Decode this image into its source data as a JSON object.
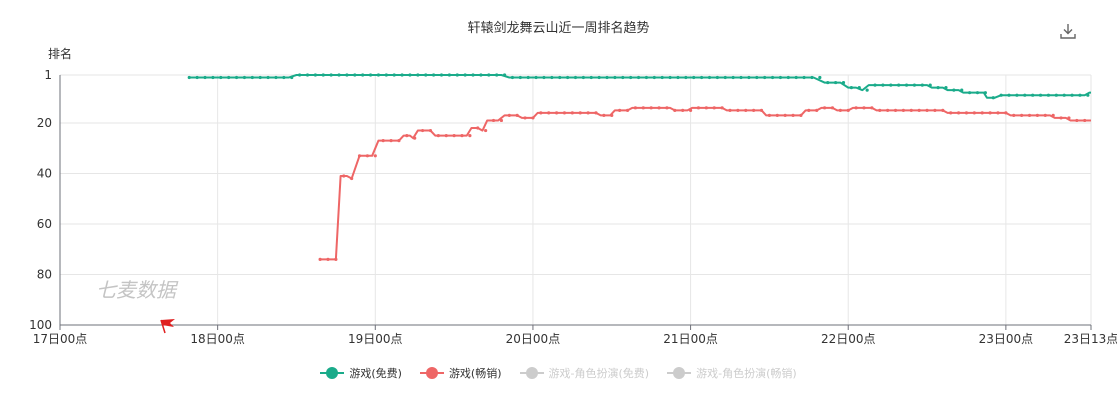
{
  "colors": {
    "free": "#1aab8a",
    "paid": "#ee6666",
    "inactive": "#cccccc",
    "grid": "#e6e6e6",
    "axis": "#6e7079",
    "watermark": "#c4c4c4",
    "flag": "#e02020"
  },
  "icons": {
    "download": "download-icon",
    "flag": "flag-icon"
  },
  "watermark": "七麦数据",
  "chart_data": {
    "type": "line",
    "title": "轩辕剑龙舞云山近一周排名趋势",
    "ylabel": "排名",
    "yticks": [
      1,
      20,
      40,
      60,
      80,
      100
    ],
    "ylim": [
      1,
      100
    ],
    "y_inverted": true,
    "xlim": [
      0,
      6.54
    ],
    "xticks": [
      {
        "value": 0,
        "label": "17日00点"
      },
      {
        "value": 1,
        "label": "18日00点"
      },
      {
        "value": 2,
        "label": "19日00点"
      },
      {
        "value": 3,
        "label": "20日00点"
      },
      {
        "value": 4,
        "label": "21日00点"
      },
      {
        "value": 5,
        "label": "22日00点"
      },
      {
        "value": 6,
        "label": "23日00点"
      },
      {
        "value": 6.54,
        "label": "23日13点"
      }
    ],
    "grid": true,
    "legend_position": "bottom",
    "series": [
      {
        "name": "游戏(免费)",
        "active": true,
        "points": [
          [
            0.82,
            2
          ],
          [
            1.45,
            2
          ],
          [
            1.5,
            1
          ],
          [
            2.0,
            1
          ],
          [
            2.5,
            1
          ],
          [
            2.8,
            1
          ],
          [
            2.85,
            2
          ],
          [
            3.5,
            2
          ],
          [
            4.0,
            2
          ],
          [
            4.78,
            2
          ],
          [
            4.85,
            4
          ],
          [
            4.95,
            4
          ],
          [
            5.0,
            6
          ],
          [
            5.05,
            6
          ],
          [
            5.09,
            7
          ],
          [
            5.13,
            5
          ],
          [
            5.5,
            5
          ],
          [
            5.53,
            6
          ],
          [
            5.6,
            6
          ],
          [
            5.63,
            7
          ],
          [
            5.7,
            7
          ],
          [
            5.73,
            8
          ],
          [
            5.86,
            8
          ],
          [
            5.88,
            10
          ],
          [
            5.93,
            10
          ],
          [
            5.97,
            9
          ],
          [
            6.5,
            9
          ],
          [
            6.53,
            8
          ],
          [
            6.54,
            8
          ]
        ]
      },
      {
        "name": "游戏(畅销)",
        "active": true,
        "points": [
          [
            1.65,
            74
          ],
          [
            1.75,
            74
          ],
          [
            1.78,
            41
          ],
          [
            1.82,
            41
          ],
          [
            1.85,
            42
          ],
          [
            1.9,
            33
          ],
          [
            1.98,
            33
          ],
          [
            2.02,
            27
          ],
          [
            2.15,
            27
          ],
          [
            2.18,
            25
          ],
          [
            2.22,
            25
          ],
          [
            2.24,
            26
          ],
          [
            2.27,
            23
          ],
          [
            2.35,
            23
          ],
          [
            2.38,
            25
          ],
          [
            2.58,
            25
          ],
          [
            2.61,
            22
          ],
          [
            2.65,
            22
          ],
          [
            2.68,
            23
          ],
          [
            2.71,
            19
          ],
          [
            2.78,
            19
          ],
          [
            2.82,
            17
          ],
          [
            2.9,
            17
          ],
          [
            2.93,
            18
          ],
          [
            3.0,
            18
          ],
          [
            3.03,
            16
          ],
          [
            3.4,
            16
          ],
          [
            3.43,
            17
          ],
          [
            3.49,
            17
          ],
          [
            3.52,
            15
          ],
          [
            3.6,
            15
          ],
          [
            3.63,
            14
          ],
          [
            3.87,
            14
          ],
          [
            3.9,
            15
          ],
          [
            3.98,
            15
          ],
          [
            4.01,
            14
          ],
          [
            4.2,
            14
          ],
          [
            4.23,
            15
          ],
          [
            4.45,
            15
          ],
          [
            4.48,
            17
          ],
          [
            4.7,
            17
          ],
          [
            4.73,
            15
          ],
          [
            4.8,
            15
          ],
          [
            4.83,
            14
          ],
          [
            4.9,
            14
          ],
          [
            4.93,
            15
          ],
          [
            5.0,
            15
          ],
          [
            5.03,
            14
          ],
          [
            5.15,
            14
          ],
          [
            5.18,
            15
          ],
          [
            5.6,
            15
          ],
          [
            5.63,
            16
          ],
          [
            6.0,
            16
          ],
          [
            6.03,
            17
          ],
          [
            6.28,
            17
          ],
          [
            6.31,
            18
          ],
          [
            6.38,
            18
          ],
          [
            6.41,
            19
          ],
          [
            6.54,
            19
          ]
        ]
      },
      {
        "name": "游戏-角色扮演(免费)",
        "active": false,
        "points": []
      },
      {
        "name": "游戏-角色扮演(畅销)",
        "active": false,
        "points": []
      }
    ]
  }
}
